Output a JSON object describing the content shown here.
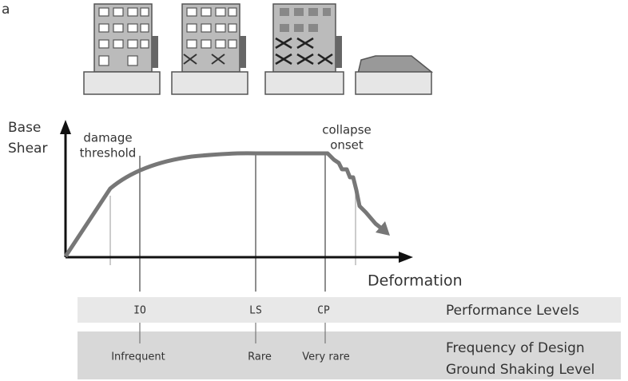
{
  "panel_label": "a",
  "y_axis_label": [
    "Base",
    "Shear"
  ],
  "x_axis_label": "Deformation",
  "annotations": {
    "damage_threshold": [
      "damage",
      "threshold"
    ],
    "collapse_onset": [
      "collapse",
      "onset"
    ]
  },
  "performance_levels": {
    "title": "Performance Levels",
    "levels": [
      "IO",
      "LS",
      "CP"
    ]
  },
  "frequency_levels": {
    "title": [
      "Frequency of Design",
      "Ground Shaking Level"
    ],
    "levels": [
      "Infrequent",
      "Rare",
      "Very rare"
    ]
  }
}
